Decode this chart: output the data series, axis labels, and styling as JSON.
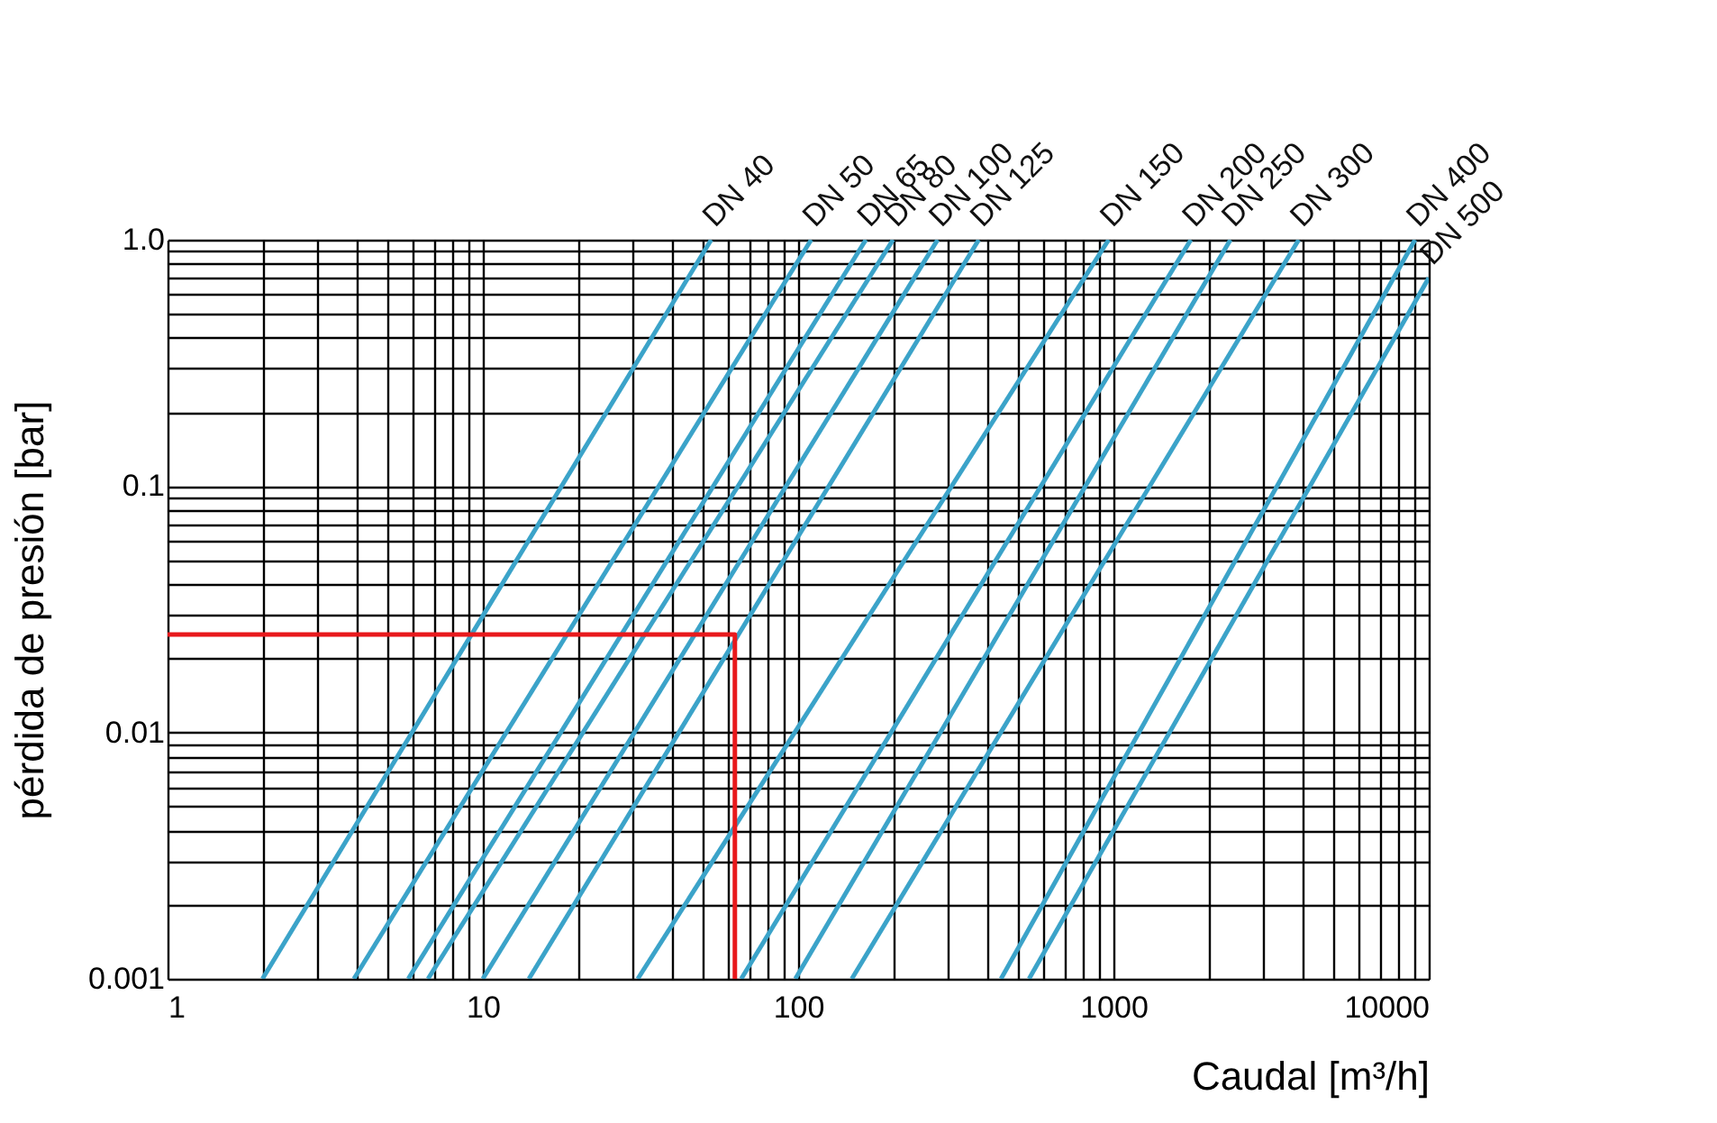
{
  "chart_data": {
    "type": "line",
    "xlabel": "Caudal [m³/h]",
    "ylabel": "pérdida de presión [bar]",
    "log": "xy",
    "grid": true,
    "marker": "none",
    "line_style": "solid",
    "xlim": [
      1,
      10000
    ],
    "ylim": [
      0.001,
      1
    ],
    "xticks": [
      1,
      {
        "value": 2,
        "label": null
      },
      {
        "value": 3,
        "label": null
      },
      {
        "value": 4,
        "label": null
      },
      {
        "value": 5,
        "label": null
      },
      {
        "value": 6,
        "label": null
      },
      {
        "value": 7,
        "label": null
      },
      {
        "value": 8,
        "label": null
      },
      {
        "value": 9,
        "label": null
      },
      10,
      {
        "value": 20,
        "label": null
      },
      {
        "value": 30,
        "label": null
      },
      {
        "value": 40,
        "label": null
      },
      {
        "value": 50,
        "label": null
      },
      {
        "value": 60,
        "label": null
      },
      {
        "value": 70,
        "label": null
      },
      {
        "value": 80,
        "label": null
      },
      {
        "value": 90,
        "label": null
      },
      100,
      {
        "value": 200,
        "label": null
      },
      {
        "value": 300,
        "label": null
      },
      {
        "value": 400,
        "label": null
      },
      {
        "value": 500,
        "label": null
      },
      {
        "value": 600,
        "label": null
      },
      {
        "value": 700,
        "label": null
      },
      {
        "value": 800,
        "label": null
      },
      {
        "value": 900,
        "label": null
      },
      1000,
      {
        "value": 2000,
        "label": null
      },
      {
        "value": 3000,
        "label": null
      },
      {
        "value": 4000,
        "label": null
      },
      {
        "value": 5000,
        "label": null
      },
      {
        "value": 6000,
        "label": null
      },
      {
        "value": 7000,
        "label": null
      },
      {
        "value": 8000,
        "label": null
      },
      {
        "value": 9000,
        "label": null
      },
      10000
    ],
    "yticks": [
      0.001,
      {
        "value": 0.002,
        "label": null
      },
      {
        "value": 0.003,
        "label": null
      },
      {
        "value": 0.004,
        "label": null
      },
      {
        "value": 0.005,
        "label": null
      },
      {
        "value": 0.006,
        "label": null
      },
      {
        "value": 0.007,
        "label": null
      },
      {
        "value": 0.008,
        "label": null
      },
      {
        "value": 0.009,
        "label": null
      },
      0.01,
      {
        "value": 0.02,
        "label": null
      },
      {
        "value": 0.03,
        "label": null
      },
      {
        "value": 0.04,
        "label": null
      },
      {
        "value": 0.05,
        "label": null
      },
      {
        "value": 0.06,
        "label": null
      },
      {
        "value": 0.07,
        "label": null
      },
      {
        "value": 0.08,
        "label": null
      },
      {
        "value": 0.09,
        "label": null
      },
      0.1,
      {
        "value": 0.2,
        "label": null
      },
      {
        "value": 0.3,
        "label": null
      },
      {
        "value": 0.4,
        "label": null
      },
      {
        "value": 0.5,
        "label": null
      },
      {
        "value": 0.6,
        "label": null
      },
      {
        "value": 0.7,
        "label": null
      },
      {
        "value": 0.8,
        "label": null
      },
      {
        "value": 0.9,
        "label": null
      },
      {
        "value": 1,
        "label": "1.0"
      }
    ],
    "series": [
      {
        "name": "DN 40",
        "color": "#3ba3c9",
        "x": [
          2,
          53
        ],
        "values": [
          0.001,
          1
        ]
      },
      {
        "name": "DN 50",
        "color": "#3ba3c9",
        "x": [
          3.9,
          110
        ],
        "values": [
          0.001,
          1
        ]
      },
      {
        "name": "DN 65",
        "color": "#3ba3c9",
        "x": [
          5.8,
          164
        ],
        "values": [
          0.001,
          1
        ]
      },
      {
        "name": "DN 80",
        "color": "#3ba3c9",
        "x": [
          6.7,
          200
        ],
        "values": [
          0.001,
          1
        ]
      },
      {
        "name": "DN 100",
        "color": "#3ba3c9",
        "x": [
          10,
          277
        ],
        "values": [
          0.001,
          1
        ]
      },
      {
        "name": "DN 125",
        "color": "#3ba3c9",
        "x": [
          14,
          374
        ],
        "values": [
          0.001,
          1
        ]
      },
      {
        "name": "DN 150",
        "color": "#3ba3c9",
        "x": [
          31,
          966
        ],
        "values": [
          0.001,
          1
        ]
      },
      {
        "name": "DN 200",
        "color": "#3ba3c9",
        "x": [
          66,
          1760
        ],
        "values": [
          0.001,
          1
        ]
      },
      {
        "name": "DN 250",
        "color": "#3ba3c9",
        "x": [
          98,
          2350
        ],
        "values": [
          0.001,
          1
        ]
      },
      {
        "name": "DN 300",
        "color": "#3ba3c9",
        "x": [
          148,
          3870
        ],
        "values": [
          0.001,
          1
        ]
      },
      {
        "name": "DN 400",
        "color": "#3ba3c9",
        "x": [
          440,
          9050
        ],
        "values": [
          0.001,
          1
        ]
      },
      {
        "name": "DN 500",
        "color": "#3ba3c9",
        "x": [
          540,
          10000
        ],
        "values": [
          0.001,
          0.7
        ]
      },
      {
        "color": "#e8191c",
        "x": [
          1,
          63,
          63
        ],
        "values": [
          0.025,
          0.025,
          0.001
        ]
      }
    ]
  }
}
